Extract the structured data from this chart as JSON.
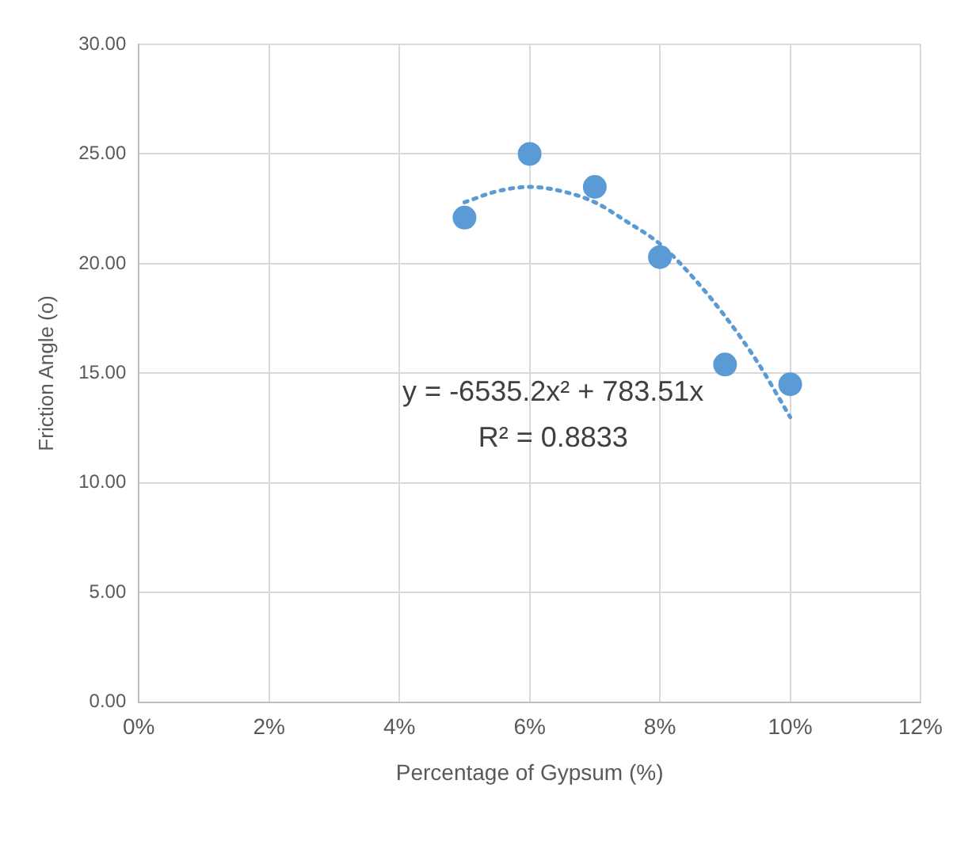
{
  "chart_data": {
    "type": "scatter",
    "xlabel": "Percentage of Gypsum (%)",
    "ylabel": "Friction Angle (o)",
    "xlim": [
      0,
      12
    ],
    "xticks": [
      {
        "value": 0,
        "label": "0%"
      },
      {
        "value": 2,
        "label": "2%"
      },
      {
        "value": 4,
        "label": "4%"
      },
      {
        "value": 6,
        "label": "6%"
      },
      {
        "value": 8,
        "label": "8%"
      },
      {
        "value": 10,
        "label": "10%"
      },
      {
        "value": 12,
        "label": "12%"
      }
    ],
    "ylim": [
      0,
      30
    ],
    "yticks": [
      {
        "value": 0,
        "label": "0.00"
      },
      {
        "value": 5,
        "label": "5.00"
      },
      {
        "value": 10,
        "label": "10.00"
      },
      {
        "value": 15,
        "label": "15.00"
      },
      {
        "value": 20,
        "label": "20.00"
      },
      {
        "value": 25,
        "label": "25.00"
      },
      {
        "value": 30,
        "label": "30.00"
      }
    ],
    "grid": true,
    "legend": false,
    "series": [
      {
        "type": "scatter",
        "color": "#5b9bd5",
        "marker": "circle",
        "x": [
          5,
          6,
          7,
          8,
          9,
          10
        ],
        "values": [
          22.1,
          25.0,
          23.5,
          20.3,
          15.4,
          14.5
        ]
      },
      {
        "type": "line",
        "color": "#5b9bd5",
        "line_style": "dotted",
        "marker": "none",
        "x": [
          5,
          5.5,
          6,
          6.5,
          7,
          7.5,
          8,
          8.5,
          9,
          9.5,
          10
        ],
        "values": [
          22.8,
          23.3,
          23.5,
          23.3,
          22.8,
          21.9,
          20.9,
          19.4,
          17.6,
          15.5,
          13.0
        ]
      }
    ],
    "annotations": [
      "y = -6535.2x² + 783.51x",
      "R² = 0.8833"
    ]
  }
}
